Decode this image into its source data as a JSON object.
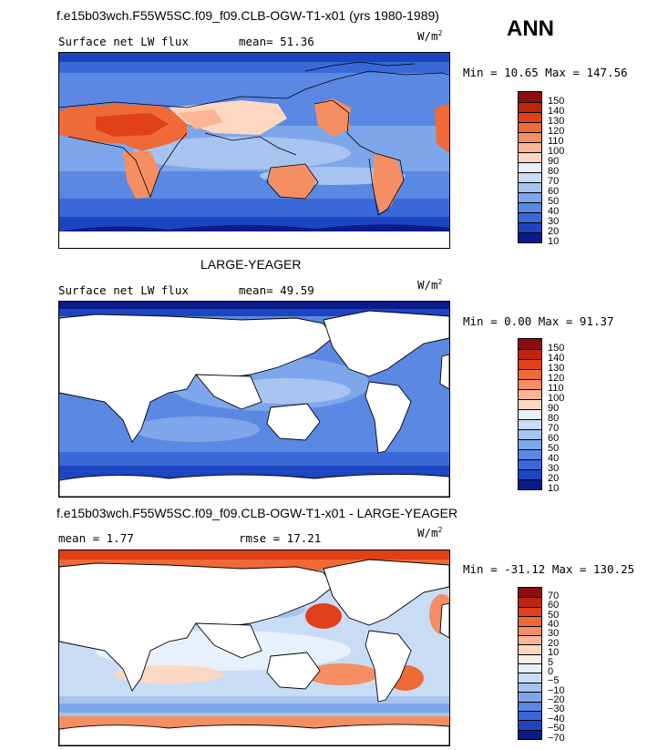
{
  "season": "ANN",
  "unit_base": "W/m",
  "unit_exp": "2",
  "panels": [
    {
      "title": "f.e15b03wch.F55W5SC.f09_f09.CLB-OGW-T1-x01 (yrs 1980-1989)",
      "left_label": "Surface net LW flux",
      "stat1": "mean=  51.36",
      "stat2": "",
      "minmax": "Min =  10.65 Max = 147.56"
    },
    {
      "title": "LARGE-YEAGER",
      "left_label": "Surface net LW flux",
      "stat1": "mean=  49.59",
      "stat2": "",
      "minmax": "Min =   0.00 Max =  91.37"
    },
    {
      "title": "f.e15b03wch.F55W5SC.f09_f09.CLB-OGW-T1-x01 - LARGE-YEAGER",
      "left_label": "mean =   1.77",
      "stat1": "rmse =  17.21",
      "stat2": "",
      "minmax": "Min = -31.12 Max = 130.25"
    }
  ],
  "chart_data": [
    {
      "type": "heatmap",
      "title": "f.e15b03wch.F55W5SC.f09_f09.CLB-OGW-T1-x01 (yrs 1980-1989)",
      "variable": "Surface net LW flux",
      "mean": 51.36,
      "min": 10.65,
      "max": 147.56,
      "colorbar_levels": [
        150,
        140,
        130,
        120,
        110,
        100,
        90,
        80,
        70,
        60,
        50,
        40,
        30,
        20,
        10
      ],
      "colorbar_colors": [
        "#8b0d0d",
        "#c0240d",
        "#e0401a",
        "#f06a38",
        "#f58e62",
        "#f9b595",
        "#fcd8c2",
        "#e8f0fb",
        "#c9dcf6",
        "#a7c4f0",
        "#7ea6ea",
        "#5a88e2",
        "#3a68d8",
        "#1d45c2",
        "#0a1b8a"
      ]
    },
    {
      "type": "heatmap",
      "title": "LARGE-YEAGER",
      "variable": "Surface net LW flux",
      "mean": 49.59,
      "min": 0.0,
      "max": 91.37,
      "colorbar_levels": [
        150,
        140,
        130,
        120,
        110,
        100,
        90,
        80,
        70,
        60,
        50,
        40,
        30,
        20,
        10
      ],
      "colorbar_colors": [
        "#8b0d0d",
        "#c0240d",
        "#e0401a",
        "#f06a38",
        "#f58e62",
        "#f9b595",
        "#fcd8c2",
        "#e8f0fb",
        "#c9dcf6",
        "#a7c4f0",
        "#7ea6ea",
        "#5a88e2",
        "#3a68d8",
        "#1d45c2",
        "#0a1b8a"
      ]
    },
    {
      "type": "heatmap",
      "title": "f.e15b03wch.F55W5SC.f09_f09.CLB-OGW-T1-x01 - LARGE-YEAGER",
      "variable": "difference",
      "mean": 1.77,
      "rmse": 17.21,
      "min": -31.12,
      "max": 130.25,
      "colorbar_levels": [
        70,
        60,
        50,
        40,
        30,
        20,
        10,
        5,
        0,
        -5,
        -10,
        -20,
        -30,
        -40,
        -50,
        -70
      ],
      "colorbar_colors": [
        "#8b0d0d",
        "#c0240d",
        "#e0401a",
        "#f06a38",
        "#f58e62",
        "#f9b595",
        "#fcd8c2",
        "#fdeee3",
        "#e8f0fb",
        "#c9dcf6",
        "#a7c4f0",
        "#7ea6ea",
        "#5a88e2",
        "#3a68d8",
        "#1d45c2",
        "#0a1b8a"
      ]
    }
  ]
}
